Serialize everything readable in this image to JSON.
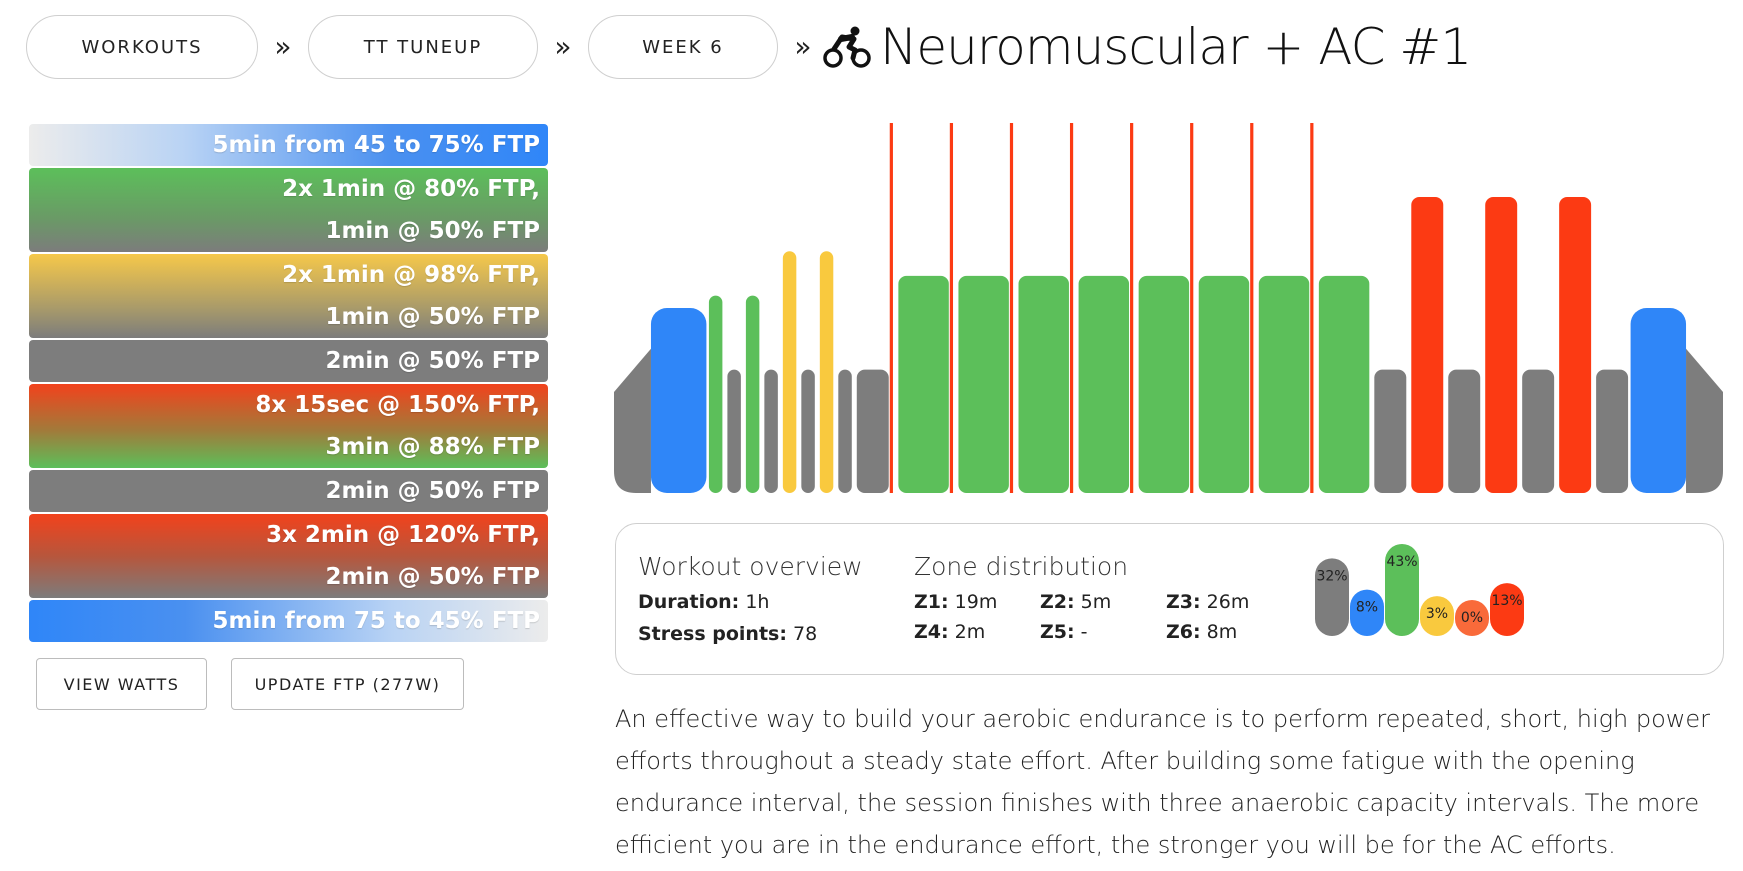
{
  "breadcrumb": {
    "items": [
      "WORKOUTS",
      "TT TUNEUP",
      "WEEK 6"
    ],
    "separator": "»",
    "title": "Neuromuscular + AC #1",
    "icon": "cyclist-icon"
  },
  "intervals": [
    {
      "lines": [
        "5min from 45 to 75% FTP"
      ],
      "style": "ramp-up"
    },
    {
      "lines": [
        "2x 1min @ 80% FTP,",
        "1min @ 50% FTP"
      ],
      "style": "green"
    },
    {
      "lines": [
        "2x 1min @ 98% FTP,",
        "1min @ 50% FTP"
      ],
      "style": "yellow"
    },
    {
      "lines": [
        "2min @ 50% FTP"
      ],
      "style": "grey"
    },
    {
      "lines": [
        "8x 15sec @ 150% FTP,",
        "3min @ 88% FTP"
      ],
      "style": "redgreen"
    },
    {
      "lines": [
        "2min @ 50% FTP"
      ],
      "style": "grey"
    },
    {
      "lines": [
        "3x 2min @ 120% FTP,",
        "2min @ 50% FTP"
      ],
      "style": "redgrey"
    },
    {
      "lines": [
        "5min from 75 to 45% FTP"
      ],
      "style": "ramp-down"
    }
  ],
  "buttons": {
    "view_watts": "VIEW WATTS",
    "update_ftp": "UPDATE FTP (277W)"
  },
  "colors": {
    "z1": "#7d7d7d",
    "z2": "#2f86f8",
    "z3": "#5cbf5a",
    "z4": "#f9c93e",
    "z5": "#f96a3a",
    "z6": "#fc3a13"
  },
  "chart_data": {
    "type": "bar",
    "description_units": "percent FTP vs minutes",
    "segments": [
      {
        "kind": "ramp",
        "start": 0,
        "end": 5,
        "from": 45,
        "to": 75,
        "zone": "z2"
      },
      {
        "kind": "block",
        "start": 5,
        "end": 6,
        "value": 80,
        "zone": "z3"
      },
      {
        "kind": "block",
        "start": 6,
        "end": 7,
        "value": 50,
        "zone": "z1"
      },
      {
        "kind": "block",
        "start": 7,
        "end": 8,
        "value": 80,
        "zone": "z3"
      },
      {
        "kind": "block",
        "start": 8,
        "end": 9,
        "value": 50,
        "zone": "z1"
      },
      {
        "kind": "block",
        "start": 9,
        "end": 10,
        "value": 98,
        "zone": "z4"
      },
      {
        "kind": "block",
        "start": 10,
        "end": 11,
        "value": 50,
        "zone": "z1"
      },
      {
        "kind": "block",
        "start": 11,
        "end": 12,
        "value": 98,
        "zone": "z4"
      },
      {
        "kind": "block",
        "start": 12,
        "end": 13,
        "value": 50,
        "zone": "z1"
      },
      {
        "kind": "block",
        "start": 13,
        "end": 15,
        "value": 50,
        "zone": "z1"
      },
      {
        "kind": "spike",
        "start": 15,
        "end": 15.25,
        "value": 150,
        "zone": "z6"
      },
      {
        "kind": "block",
        "start": 15.25,
        "end": 18.25,
        "value": 88,
        "zone": "z3"
      },
      {
        "kind": "spike",
        "start": 18.25,
        "end": 18.5,
        "value": 150,
        "zone": "z6"
      },
      {
        "kind": "block",
        "start": 18.5,
        "end": 21.5,
        "value": 88,
        "zone": "z3"
      },
      {
        "kind": "spike",
        "start": 21.5,
        "end": 21.75,
        "value": 150,
        "zone": "z6"
      },
      {
        "kind": "block",
        "start": 21.75,
        "end": 24.75,
        "value": 88,
        "zone": "z3"
      },
      {
        "kind": "spike",
        "start": 24.75,
        "end": 25,
        "value": 150,
        "zone": "z6"
      },
      {
        "kind": "block",
        "start": 25,
        "end": 28,
        "value": 88,
        "zone": "z3"
      },
      {
        "kind": "spike",
        "start": 28,
        "end": 28.25,
        "value": 150,
        "zone": "z6"
      },
      {
        "kind": "block",
        "start": 28.25,
        "end": 31.25,
        "value": 88,
        "zone": "z3"
      },
      {
        "kind": "spike",
        "start": 31.25,
        "end": 31.5,
        "value": 150,
        "zone": "z6"
      },
      {
        "kind": "block",
        "start": 31.5,
        "end": 34.5,
        "value": 88,
        "zone": "z3"
      },
      {
        "kind": "spike",
        "start": 34.5,
        "end": 34.75,
        "value": 150,
        "zone": "z6"
      },
      {
        "kind": "block",
        "start": 34.75,
        "end": 37.75,
        "value": 88,
        "zone": "z3"
      },
      {
        "kind": "spike",
        "start": 37.75,
        "end": 38,
        "value": 150,
        "zone": "z6"
      },
      {
        "kind": "block",
        "start": 38,
        "end": 41,
        "value": 88,
        "zone": "z3"
      },
      {
        "kind": "block",
        "start": 41,
        "end": 43,
        "value": 50,
        "zone": "z1"
      },
      {
        "kind": "block",
        "start": 43,
        "end": 45,
        "value": 120,
        "zone": "z6"
      },
      {
        "kind": "block",
        "start": 45,
        "end": 47,
        "value": 50,
        "zone": "z1"
      },
      {
        "kind": "block",
        "start": 47,
        "end": 49,
        "value": 120,
        "zone": "z6"
      },
      {
        "kind": "block",
        "start": 49,
        "end": 51,
        "value": 50,
        "zone": "z1"
      },
      {
        "kind": "block",
        "start": 51,
        "end": 53,
        "value": 120,
        "zone": "z6"
      },
      {
        "kind": "block",
        "start": 53,
        "end": 55,
        "value": 50,
        "zone": "z1"
      },
      {
        "kind": "ramp",
        "start": 55,
        "end": 60,
        "from": 75,
        "to": 45,
        "zone": "z2"
      }
    ],
    "xlim": [
      0,
      60
    ],
    "ylim": [
      0,
      150
    ]
  },
  "overview": {
    "title": "Workout overview",
    "duration_label": "Duration:",
    "duration_value": "1h",
    "stress_label": "Stress points:",
    "stress_value": "78"
  },
  "zone_distribution": {
    "title": "Zone distribution",
    "zones": [
      {
        "label": "Z1:",
        "value": "19m"
      },
      {
        "label": "Z2:",
        "value": "5m"
      },
      {
        "label": "Z3:",
        "value": "26m"
      },
      {
        "label": "Z4:",
        "value": "2m"
      },
      {
        "label": "Z5:",
        "value": "-"
      },
      {
        "label": "Z6:",
        "value": "8m"
      }
    ],
    "percent_chart": [
      {
        "zone": "z1",
        "percent": 32,
        "label": "32%"
      },
      {
        "zone": "z2",
        "percent": 8,
        "label": "8%"
      },
      {
        "zone": "z3",
        "percent": 43,
        "label": "43%"
      },
      {
        "zone": "z4",
        "percent": 3,
        "label": "3%"
      },
      {
        "zone": "z5",
        "percent": 0,
        "label": "0%"
      },
      {
        "zone": "z6",
        "percent": 13,
        "label": "13%"
      }
    ]
  },
  "description": "An effective way to build your aerobic endurance is to perform repeated, short, high power efforts throughout a steady state effort. After building some fatigue with the opening endurance interval, the session finishes with three anaerobic capacity intervals. The more efficient you are in the endurance effort, the stronger you will be for the AC efforts."
}
